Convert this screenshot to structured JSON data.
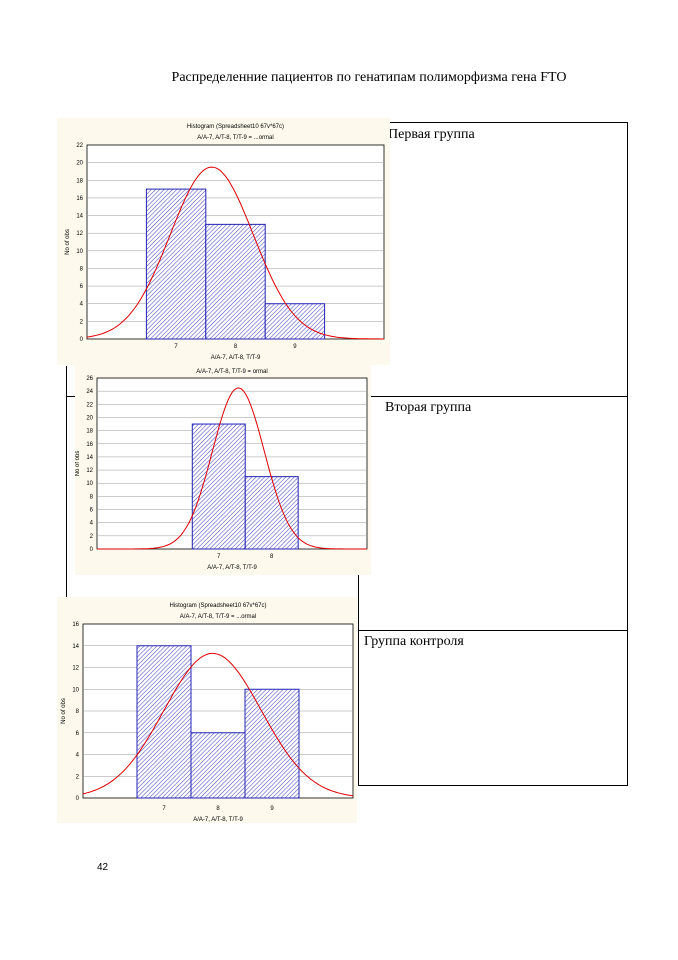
{
  "page": {
    "heading": "Распределенние пациентов по генатипам полиморфизма гена FTO",
    "page_number": "42"
  },
  "groups": [
    {
      "label": "Первая группа"
    },
    {
      "label": "Вторая группа"
    },
    {
      "label": "Группа контроля"
    }
  ],
  "colors": {
    "background": "#fdf9ec",
    "bar_stroke": "#2323b4",
    "bar_hatch": "#4b4bc8",
    "normal_curve": "#e00000",
    "grid": "#9a9a9a"
  },
  "chart_data": [
    {
      "type": "bar",
      "title": "Histogram (Spreadsheet10 67v*67c)",
      "subtitle": "A/A-7, A/T-8, T/T-9 = ...ormal",
      "xlabel": "A/A-7, A/T-8, T/T-9",
      "ylabel": "No of obs",
      "categories": [
        "7",
        "8",
        "9"
      ],
      "values": [
        17,
        13,
        4
      ],
      "ylim": [
        0,
        22
      ],
      "yticks": [
        "0",
        "2",
        "4",
        "6",
        "8",
        "10",
        "12",
        "14",
        "16",
        "18",
        "20",
        "22"
      ],
      "xlim": [
        5.5,
        10.5
      ],
      "normal_curve": {
        "mean": 7.6,
        "sd": 0.7,
        "peak": 19.5
      },
      "grid": true
    },
    {
      "type": "bar",
      "title": "",
      "subtitle": "A/A-7, A/T-8, T/T-9 = ormal",
      "xlabel": "A/A-7, A/T-8, T/T-9",
      "ylabel": "No of obs",
      "categories": [
        "7",
        "8"
      ],
      "values": [
        19,
        11
      ],
      "ylim": [
        0,
        26
      ],
      "yticks": [
        "0",
        "2",
        "4",
        "6",
        "8",
        "10",
        "12",
        "14",
        "16",
        "18",
        "20",
        "22",
        "24",
        "26"
      ],
      "xlim": [
        4.7,
        9.8
      ],
      "normal_curve": {
        "mean": 7.37,
        "sd": 0.49,
        "peak": 24.5
      },
      "grid": true
    },
    {
      "type": "bar",
      "title": "Histogram (Spreadsheet10 67v*67c)",
      "subtitle": "A/A-7, A/T-8, T/T-9 = ...ormal",
      "xlabel": "A/A-7, A/T-8, T/T-9",
      "ylabel": "No of obs",
      "categories": [
        "7",
        "8",
        "9"
      ],
      "values": [
        14,
        6,
        10
      ],
      "ylim": [
        0,
        16
      ],
      "yticks": [
        "0",
        "2",
        "4",
        "6",
        "8",
        "10",
        "12",
        "14",
        "16"
      ],
      "xlim": [
        5.5,
        10.5
      ],
      "normal_curve": {
        "mean": 7.9,
        "sd": 0.9,
        "peak": 13.3
      },
      "grid": true
    }
  ]
}
